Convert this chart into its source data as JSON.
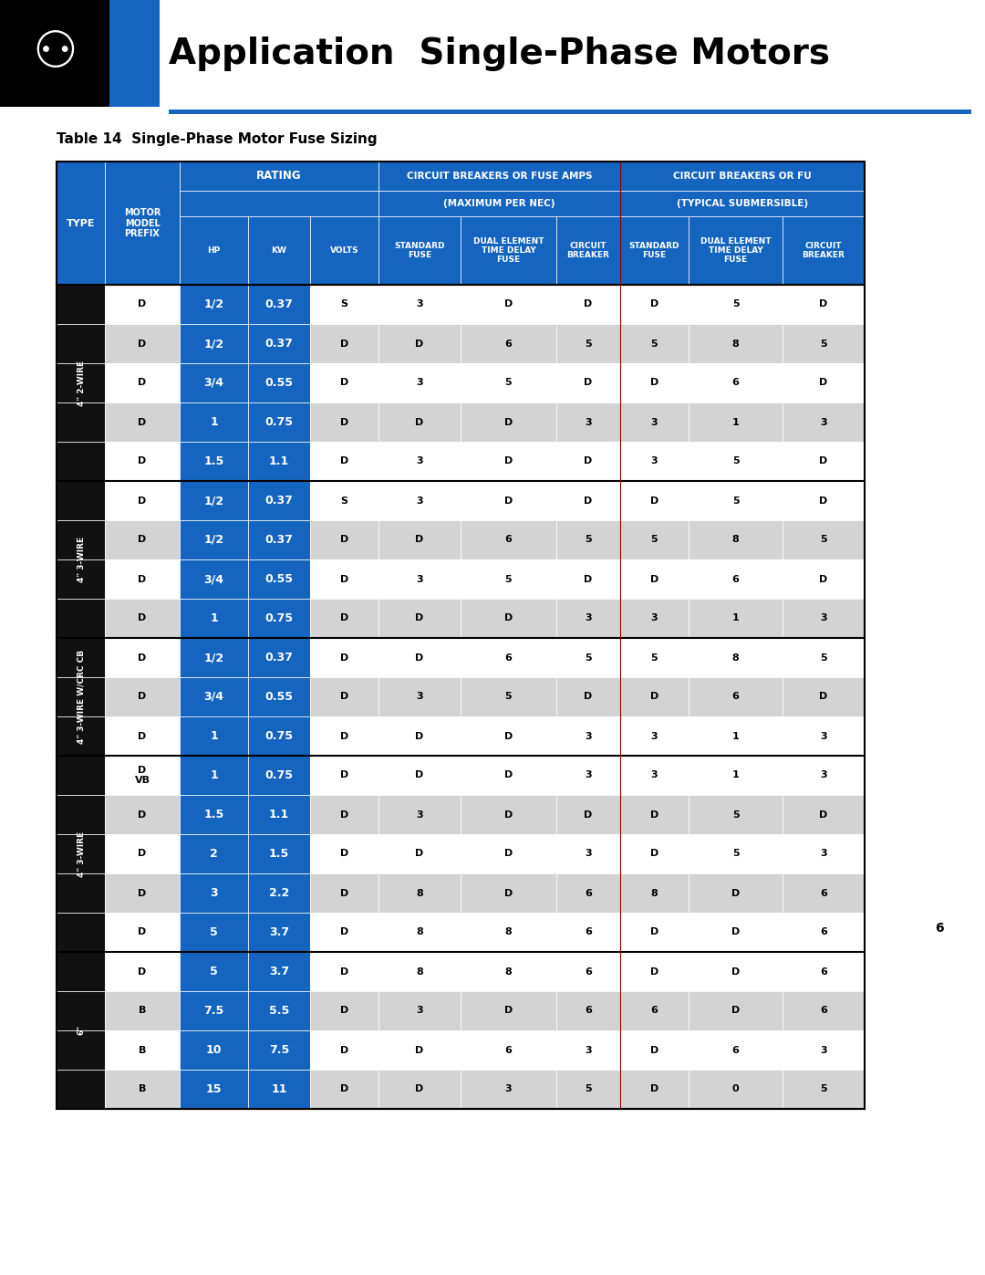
{
  "title": "Application  Single-Phase Motors",
  "table_title": "Table 14  Single-Phase Motor Fuse Sizing",
  "blue": "#1565C0",
  "black_sidebar": "#111111",
  "gray_alt": "#D3D3D3",
  "white": "#FFFFFF",
  "red_line": "#8B0000",
  "sections": [
    {
      "type_label": "4\" 2-WIRE",
      "rows": [
        [
          "D",
          "1/2",
          "0.37",
          "S",
          "3",
          "D",
          "D",
          "D",
          "5",
          "D",
          ""
        ],
        [
          "D",
          "1/2",
          "0.37",
          "D",
          "D",
          "6",
          "5",
          "5",
          "8",
          "5",
          ""
        ],
        [
          "D",
          "3/4",
          "0.55",
          "D",
          "3",
          "5",
          "D",
          "D",
          "6",
          "D",
          ""
        ],
        [
          "D",
          "1",
          "0.75",
          "D",
          "D",
          "D",
          "3",
          "3",
          "1",
          "3",
          ""
        ],
        [
          "D",
          "1.5",
          "1.1",
          "D",
          "3",
          "D",
          "D",
          "3",
          "5",
          "D",
          ""
        ]
      ]
    },
    {
      "type_label": "4\" 3-WIRE",
      "rows": [
        [
          "D",
          "1/2",
          "0.37",
          "S",
          "3",
          "D",
          "D",
          "D",
          "5",
          "D",
          ""
        ],
        [
          "D",
          "1/2",
          "0.37",
          "D",
          "D",
          "6",
          "5",
          "5",
          "8",
          "5",
          ""
        ],
        [
          "D",
          "3/4",
          "0.55",
          "D",
          "3",
          "5",
          "D",
          "D",
          "6",
          "D",
          ""
        ],
        [
          "D",
          "1",
          "0.75",
          "D",
          "D",
          "D",
          "3",
          "3",
          "1",
          "3",
          ""
        ]
      ]
    },
    {
      "type_label": "4\" 3-WIRE W/CRC CB",
      "rows": [
        [
          "D",
          "1/2",
          "0.37",
          "D",
          "D",
          "6",
          "5",
          "5",
          "8",
          "5",
          ""
        ],
        [
          "D",
          "3/4",
          "0.55",
          "D",
          "3",
          "5",
          "D",
          "D",
          "6",
          "D",
          ""
        ],
        [
          "D",
          "1",
          "0.75",
          "D",
          "D",
          "D",
          "3",
          "3",
          "1",
          "3",
          ""
        ]
      ]
    },
    {
      "type_label": "4\" 3-WIRE",
      "rows": [
        [
          "D\nVB",
          "1",
          "0.75",
          "D",
          "D",
          "D",
          "3",
          "3",
          "1",
          "3",
          ""
        ],
        [
          "D",
          "1.5",
          "1.1",
          "D",
          "3",
          "D",
          "D",
          "D",
          "5",
          "D",
          ""
        ],
        [
          "D",
          "2",
          "1.5",
          "D",
          "D",
          "D",
          "3",
          "D",
          "5",
          "3",
          ""
        ],
        [
          "D",
          "3",
          "2.2",
          "D",
          "8",
          "D",
          "6",
          "8",
          "D",
          "6",
          ""
        ],
        [
          "D",
          "5",
          "3.7",
          "D",
          "8",
          "8",
          "6",
          "D",
          "D",
          "6",
          ""
        ]
      ]
    },
    {
      "type_label": "6\"",
      "rows": [
        [
          "D",
          "5",
          "3.7",
          "D",
          "8",
          "8",
          "6",
          "D",
          "D",
          "6",
          ""
        ],
        [
          "B",
          "7.5",
          "5.5",
          "D",
          "3",
          "D",
          "6",
          "6",
          "D",
          "6",
          ""
        ],
        [
          "B",
          "10",
          "7.5",
          "D",
          "D",
          "6",
          "3",
          "D",
          "6",
          "3",
          ""
        ],
        [
          "B",
          "15",
          "11",
          "D",
          "D",
          "3",
          "5",
          "D",
          "0",
          "5",
          ""
        ]
      ]
    }
  ]
}
